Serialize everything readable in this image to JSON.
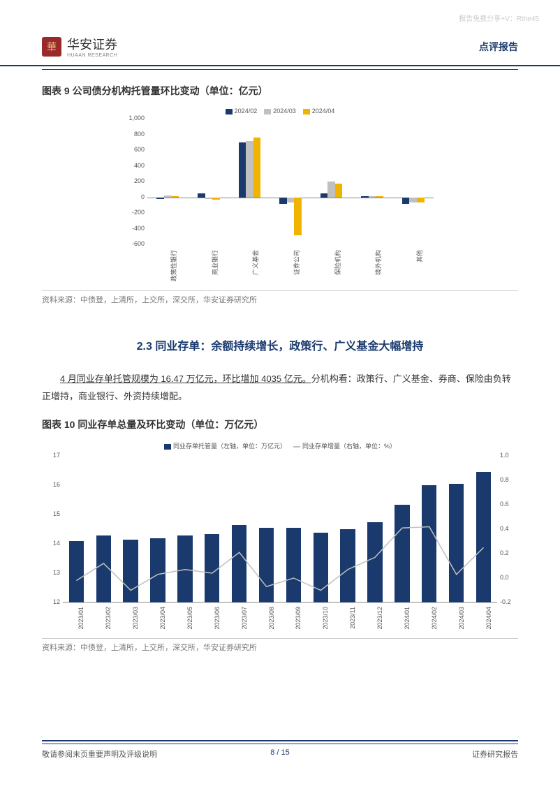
{
  "watermark": "报告免费分享+V：Rthe45",
  "header": {
    "logo_cn": "华安证券",
    "logo_en": "HUAAN RESEARCH",
    "doc_type": "点评报告"
  },
  "chart9": {
    "title": "图表 9 公司债分机构托管量环比变动（单位：亿元）",
    "type": "grouped-bar",
    "legend": [
      "2024/02",
      "2024/03",
      "2024/04"
    ],
    "colors": [
      "#1a3a6e",
      "#c0c0c0",
      "#f0b400"
    ],
    "categories": [
      "政策性银行",
      "商业银行",
      "广义基金",
      "证券公司",
      "保险机构",
      "境外机构",
      "其他"
    ],
    "series": [
      [
        -20,
        20,
        10
      ],
      [
        50,
        -20,
        -30
      ],
      [
        700,
        720,
        760
      ],
      [
        -80,
        -70,
        -480
      ],
      [
        50,
        200,
        170
      ],
      [
        15,
        10,
        10
      ],
      [
        -80,
        -70,
        -70
      ]
    ],
    "ymin": -600,
    "ymax": 1000,
    "ytick_step": 200,
    "axis_color": "#888888",
    "label_fontsize": 9,
    "background": "#ffffff"
  },
  "source_text": "资料来源：中债登，上清所，上交所，深交所，华安证券研究所",
  "section_heading": "2.3 同业存单：余额持续增长，政策行、广义基金大幅增持",
  "body_para_underlined": "4 月同业存单托管规模为 16.47 万亿元，环比增加 4035 亿元。",
  "body_para_rest": "分机构看：政策行、广义基金、券商、保险由负转正增持，商业银行、外资持续增配。",
  "chart10": {
    "title": "图表 10 同业存单总量及环比变动（单位：万亿元）",
    "type": "bar-line-dual-axis",
    "legend_bar": "同业存单托管量（左轴，单位：万亿元）",
    "legend_line": "同业存单增量（右轴，单位：%）",
    "bar_color": "#1a3a6e",
    "line_color": "#c0c0c0",
    "categories": [
      "2023/01",
      "2023/02",
      "2023/03",
      "2023/04",
      "2023/05",
      "2023/06",
      "2023/07",
      "2023/08",
      "2023/09",
      "2023/10",
      "2023/11",
      "2023/12",
      "2024/01",
      "2024/02",
      "2024/03",
      "2024/04"
    ],
    "bar_values": [
      14.1,
      14.3,
      14.15,
      14.2,
      14.3,
      14.35,
      14.65,
      14.55,
      14.55,
      14.4,
      14.5,
      14.75,
      15.35,
      16.0,
      16.05,
      16.45
    ],
    "line_values": [
      -0.02,
      0.12,
      -0.1,
      0.03,
      0.07,
      0.04,
      0.21,
      -0.07,
      0.0,
      -0.1,
      0.07,
      0.17,
      0.41,
      0.42,
      0.03,
      0.25
    ],
    "y_left_min": 12,
    "y_left_max": 17,
    "y_left_step": 1,
    "y_right_min": -0.2,
    "y_right_max": 1.0,
    "y_right_step": 0.2,
    "label_fontsize": 9,
    "background": "#ffffff"
  },
  "footer": {
    "left": "敬请参阅末页重要声明及评级说明",
    "page": "8 / 15",
    "right": "证券研究报告"
  }
}
